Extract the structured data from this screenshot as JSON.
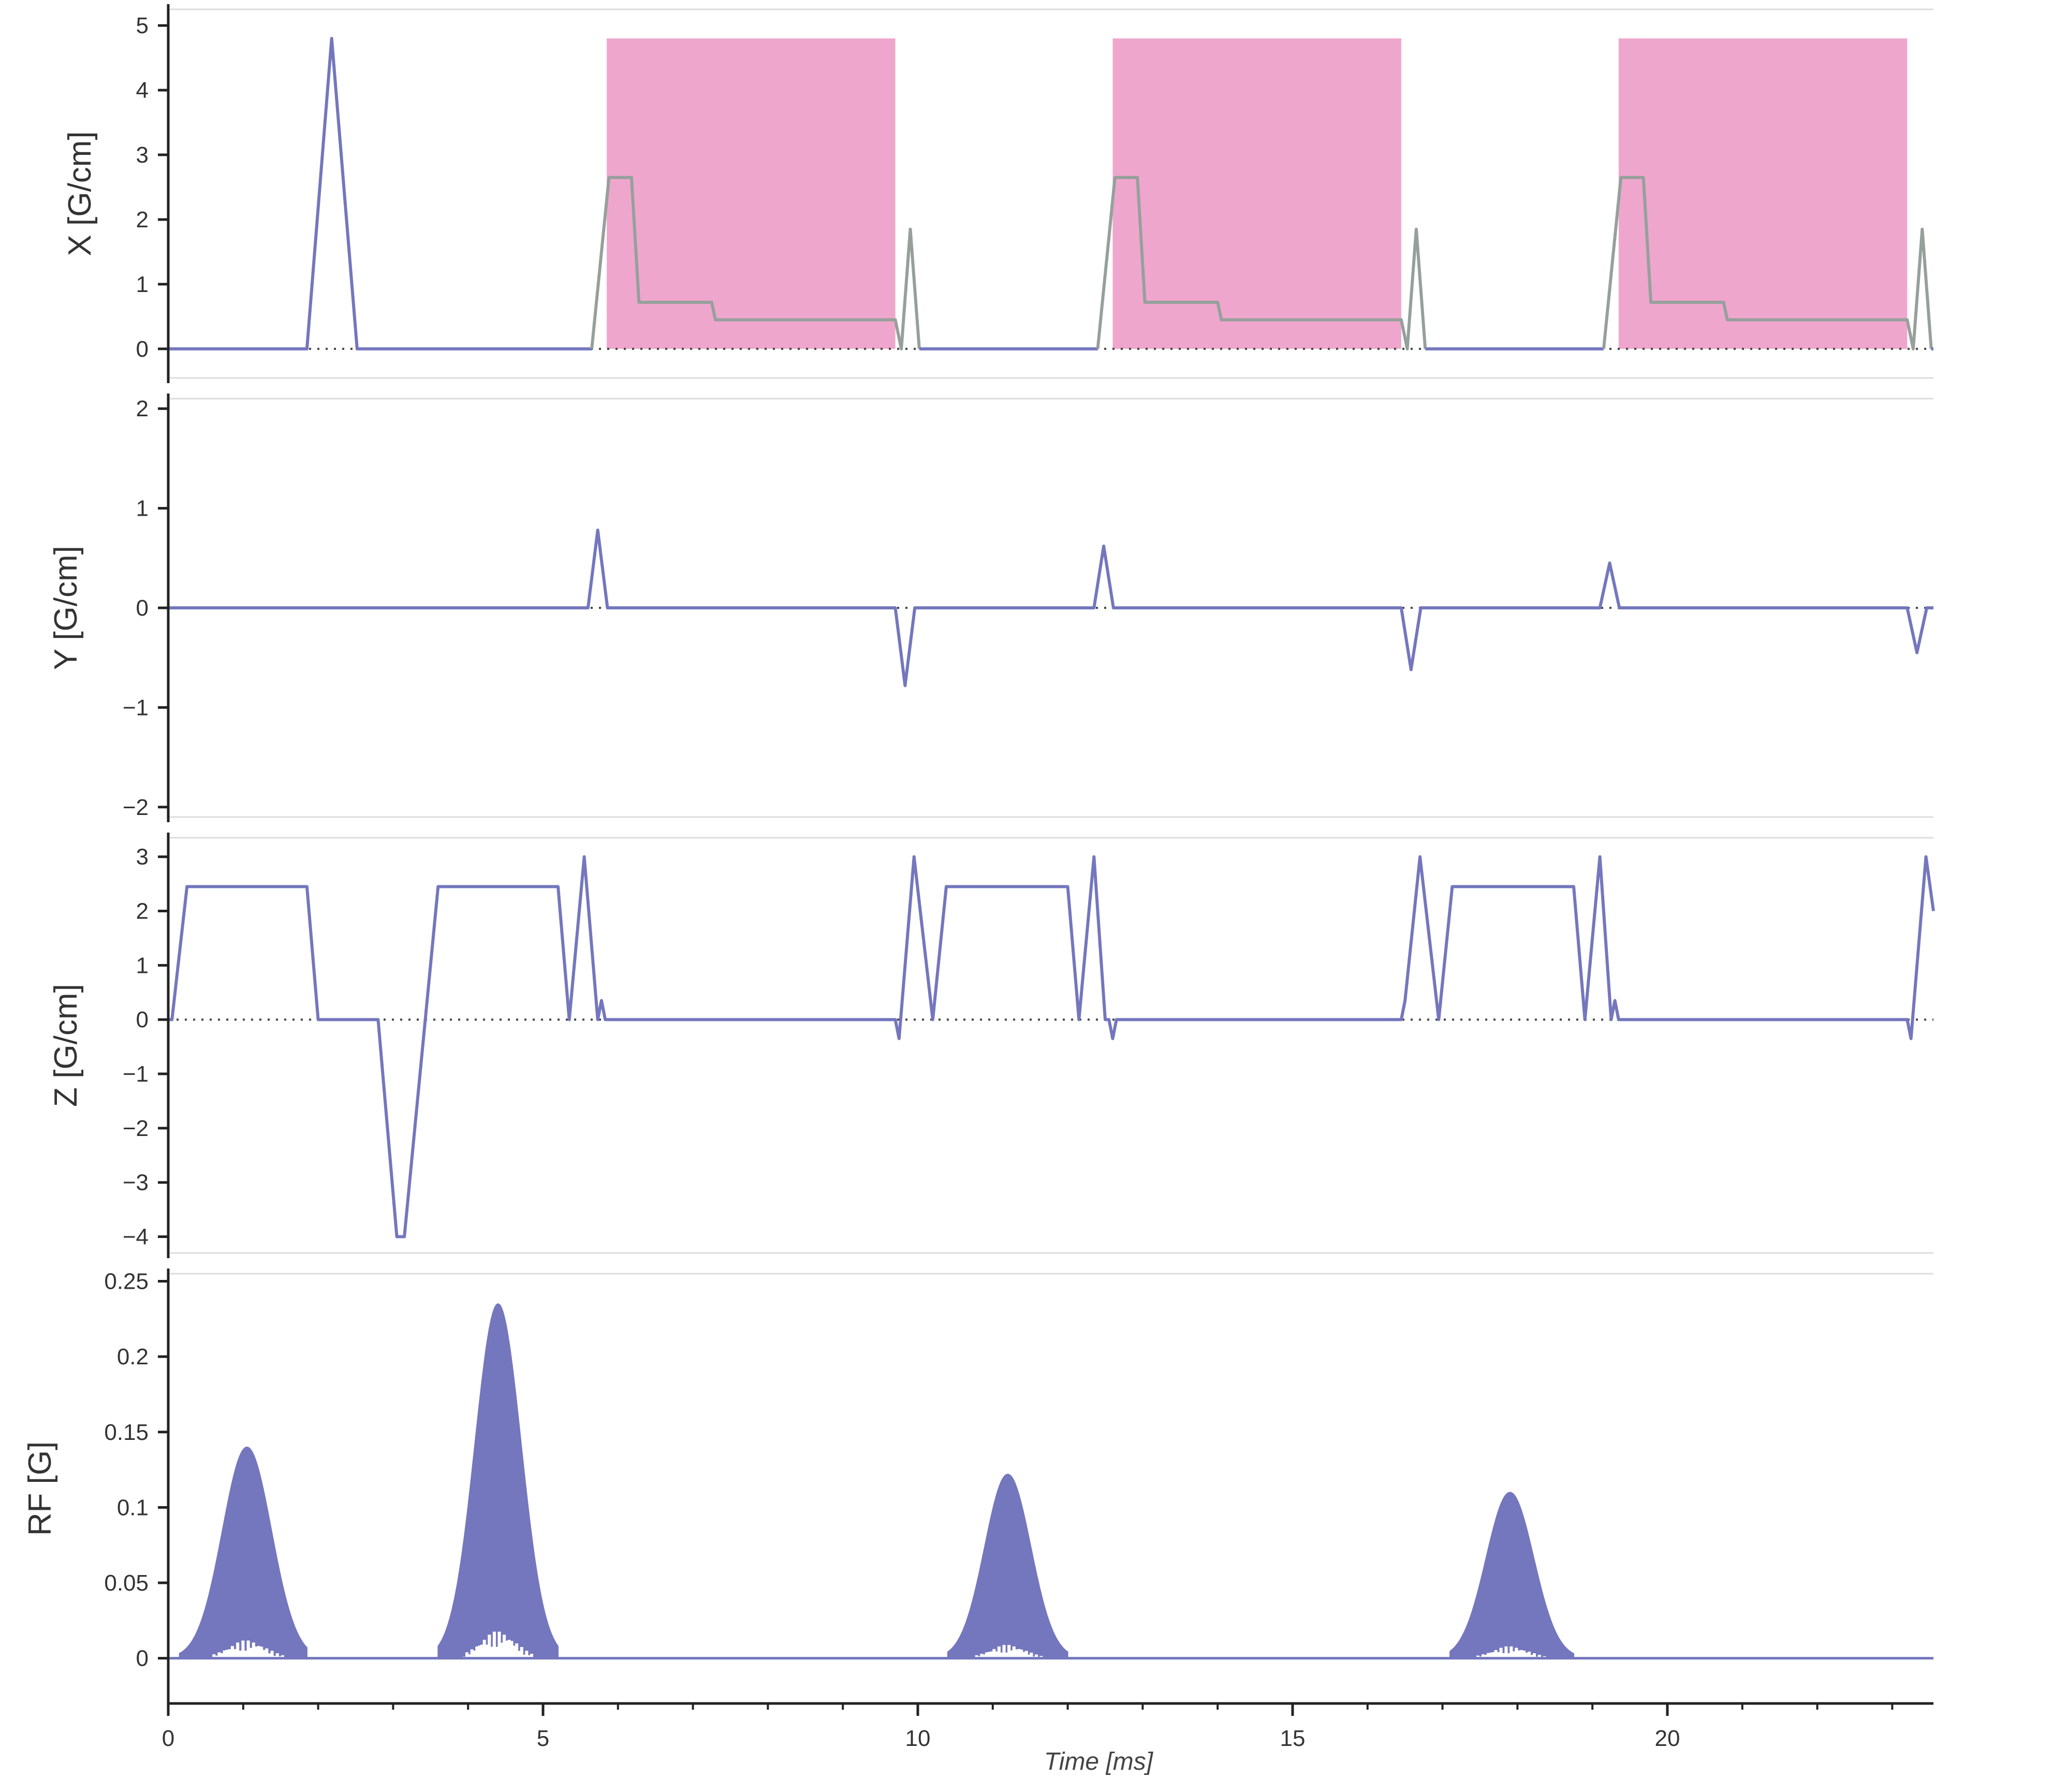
{
  "colors": {
    "trace": "#7477bd",
    "readout_trace": "#96a09b",
    "readout_band": "#efa6cd",
    "axis": "#222222",
    "zero_line": "#444444",
    "frame": "#dddddd",
    "rf_fill": "#7477bd"
  },
  "chart_data": [
    {
      "id": "x-gradient",
      "type": "line",
      "title": "",
      "xlabel": "",
      "ylabel": "X [G/cm]",
      "xlim": [
        0,
        23.55
      ],
      "ylim": [
        -0.45,
        5.25
      ],
      "y_ticks": [
        0,
        1,
        2,
        3,
        4,
        5
      ],
      "y_tick_labels": [
        "0",
        "1",
        "2",
        "3",
        "4",
        "5"
      ],
      "zero_line": true,
      "readout_bands": [
        [
          5.85,
          9.7
        ],
        [
          12.6,
          16.45
        ],
        [
          19.35,
          23.2
        ]
      ],
      "readout_band_top": 4.8,
      "series": [
        {
          "kind": "main",
          "x": [
            0,
            1.85,
            2.18,
            2.52,
            5.65
          ],
          "y": [
            0,
            0,
            4.8,
            0,
            0
          ]
        },
        {
          "kind": "readout",
          "x": [
            5.65,
            5.88,
            6.18,
            6.28,
            7.25,
            7.3,
            9.7,
            9.78,
            9.9,
            10.02
          ],
          "y": [
            0,
            2.65,
            2.65,
            0.72,
            0.72,
            0.45,
            0.45,
            0,
            1.85,
            0
          ]
        },
        {
          "kind": "main",
          "x": [
            10.02,
            12.4
          ],
          "y": [
            0,
            0
          ]
        },
        {
          "kind": "readout",
          "x": [
            12.4,
            12.63,
            12.93,
            13.03,
            14,
            14.05,
            16.45,
            16.53,
            16.65,
            16.77
          ],
          "y": [
            0,
            2.65,
            2.65,
            0.72,
            0.72,
            0.45,
            0.45,
            0,
            1.85,
            0
          ]
        },
        {
          "kind": "main",
          "x": [
            16.77,
            19.15
          ],
          "y": [
            0,
            0
          ]
        },
        {
          "kind": "readout",
          "x": [
            19.15,
            19.38,
            19.68,
            19.78,
            20.75,
            20.8,
            23.2,
            23.28,
            23.4,
            23.52
          ],
          "y": [
            0,
            2.65,
            2.65,
            0.72,
            0.72,
            0.45,
            0.45,
            0,
            1.85,
            0
          ]
        },
        {
          "kind": "main",
          "x": [
            23.52,
            23.55
          ],
          "y": [
            0,
            0
          ]
        }
      ]
    },
    {
      "id": "y-gradient",
      "type": "line",
      "title": "",
      "xlabel": "",
      "ylabel": "Y [G/cm]",
      "xlim": [
        0,
        23.55
      ],
      "ylim": [
        -2.1,
        2.1
      ],
      "y_ticks": [
        -2,
        -1,
        0,
        1,
        2
      ],
      "y_tick_labels": [
        "−2",
        "−1",
        "0",
        "1",
        "2"
      ],
      "zero_line": true,
      "series": [
        {
          "kind": "main",
          "x": [
            0,
            5.6,
            5.73,
            5.86,
            9.7,
            9.83,
            9.96,
            12.35,
            12.48,
            12.61,
            16.45,
            16.58,
            16.71,
            19.1,
            19.23,
            19.36,
            23.2,
            23.33,
            23.46,
            23.55
          ],
          "y": [
            0,
            0,
            0.78,
            0,
            0,
            -0.78,
            0,
            0,
            0.62,
            0,
            0,
            -0.62,
            0,
            0,
            0.45,
            0,
            0,
            -0.45,
            0,
            0
          ]
        }
      ]
    },
    {
      "id": "z-gradient",
      "type": "line",
      "title": "",
      "xlabel": "",
      "ylabel": "Z [G/cm]",
      "xlim": [
        0,
        23.55
      ],
      "ylim": [
        -4.3,
        3.35
      ],
      "y_ticks": [
        -4,
        -3,
        -2,
        -1,
        0,
        1,
        2,
        3
      ],
      "y_tick_labels": [
        "−4",
        "−3",
        "−2",
        "−1",
        "0",
        "1",
        "2",
        "3"
      ],
      "zero_line": true,
      "series": [
        {
          "kind": "main",
          "x": [
            0,
            0.05,
            0.25,
            1.85,
            2,
            2.8,
            3.05,
            3.15,
            3.6,
            5.2,
            5.35,
            5.55,
            5.73,
            5.78,
            5.83,
            5.88,
            9.7,
            9.75,
            9.95,
            10.2,
            10.38,
            12.0,
            12.15,
            12.35,
            12.5,
            12.55,
            12.6,
            12.65,
            16.45,
            16.5,
            16.7,
            16.95,
            17.13,
            18.75,
            18.9,
            19.1,
            19.25,
            19.3,
            19.35,
            19.4,
            23.2,
            23.25,
            23.45,
            23.55
          ],
          "y": [
            0,
            0,
            2.45,
            2.45,
            0,
            0,
            -4,
            -4,
            2.45,
            2.45,
            0,
            3,
            0,
            0.35,
            0,
            0,
            0,
            -0.35,
            3,
            0,
            2.45,
            2.45,
            0,
            3,
            0,
            0,
            -0.35,
            0,
            0,
            0.35,
            3,
            0,
            2.45,
            2.45,
            0,
            3,
            0,
            0.35,
            0,
            0,
            0,
            -0.35,
            3,
            2
          ]
        }
      ]
    },
    {
      "id": "rf",
      "type": "area",
      "title": "",
      "ylabel": "RF [G]",
      "xlabel": "Time [ms]",
      "xlim": [
        0,
        23.55
      ],
      "ylim": [
        -0.03,
        0.255
      ],
      "y_ticks": [
        0,
        0.05,
        0.1,
        0.15,
        0.2,
        0.25
      ],
      "y_tick_labels": [
        "0",
        "0.05",
        "0.1",
        "0.15",
        "0.2",
        "0.25"
      ],
      "x_ticks": [
        0,
        5,
        10,
        15,
        20
      ],
      "x_tick_labels": [
        "0",
        "5",
        "10",
        "15",
        "20"
      ],
      "x_minor_tick_step": 1,
      "zero_line": true,
      "pulses": [
        {
          "center": 1.05,
          "start": 0.15,
          "end": 1.85,
          "peak": 0.14,
          "inner_peak": 0.012
        },
        {
          "center": 4.4,
          "start": 3.6,
          "end": 5.2,
          "peak": 0.235,
          "inner_peak": 0.018
        },
        {
          "center": 11.2,
          "start": 10.4,
          "end": 12.0,
          "peak": 0.122,
          "inner_peak": 0.009
        },
        {
          "center": 17.9,
          "start": 17.1,
          "end": 18.75,
          "peak": 0.11,
          "inner_peak": 0.008
        }
      ]
    }
  ]
}
